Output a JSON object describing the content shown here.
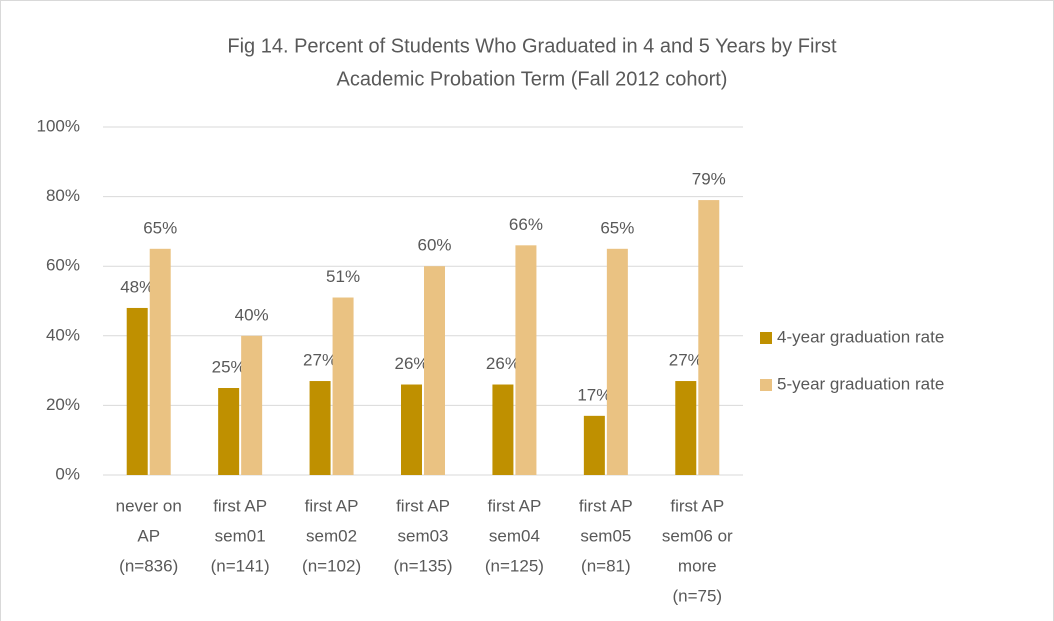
{
  "chart_data": {
    "type": "bar",
    "title": [
      "Fig 14. Percent of Students Who Graduated in 4 and 5 Years by First",
      "Academic Probation Term (Fall 2012 cohort)"
    ],
    "categories": [
      [
        "never on",
        "AP",
        "(n=836)"
      ],
      [
        "first AP",
        "sem01",
        "(n=141)"
      ],
      [
        "first AP",
        "sem02",
        "(n=102)"
      ],
      [
        "first AP",
        "sem03",
        "(n=135)"
      ],
      [
        "first AP",
        "sem04",
        "(n=125)"
      ],
      [
        "first AP",
        "sem05",
        "(n=81)"
      ],
      [
        "first AP",
        "sem06 or",
        "more",
        "(n=75)"
      ]
    ],
    "series": [
      {
        "name": "4-year graduation rate",
        "color": "#bf9000",
        "values": [
          48,
          25,
          27,
          26,
          26,
          17,
          27
        ],
        "value_labels": [
          "48%",
          "25%",
          "27%",
          "26%",
          "26%",
          "17%",
          "27%"
        ]
      },
      {
        "name": "5-year graduation rate",
        "color": "#eac282",
        "values": [
          65,
          40,
          51,
          60,
          66,
          65,
          79
        ],
        "value_labels": [
          "65%",
          "40%",
          "51%",
          "60%",
          "66%",
          "65%",
          "79%"
        ]
      }
    ],
    "ylim": [
      0,
      100
    ],
    "yticks": [
      {
        "value": 0,
        "label": "0%"
      },
      {
        "value": 20,
        "label": "20%"
      },
      {
        "value": 40,
        "label": "40%"
      },
      {
        "value": 60,
        "label": "60%"
      },
      {
        "value": 80,
        "label": "80%"
      },
      {
        "value": 100,
        "label": "100%"
      }
    ],
    "grid": true,
    "legend": "right"
  }
}
